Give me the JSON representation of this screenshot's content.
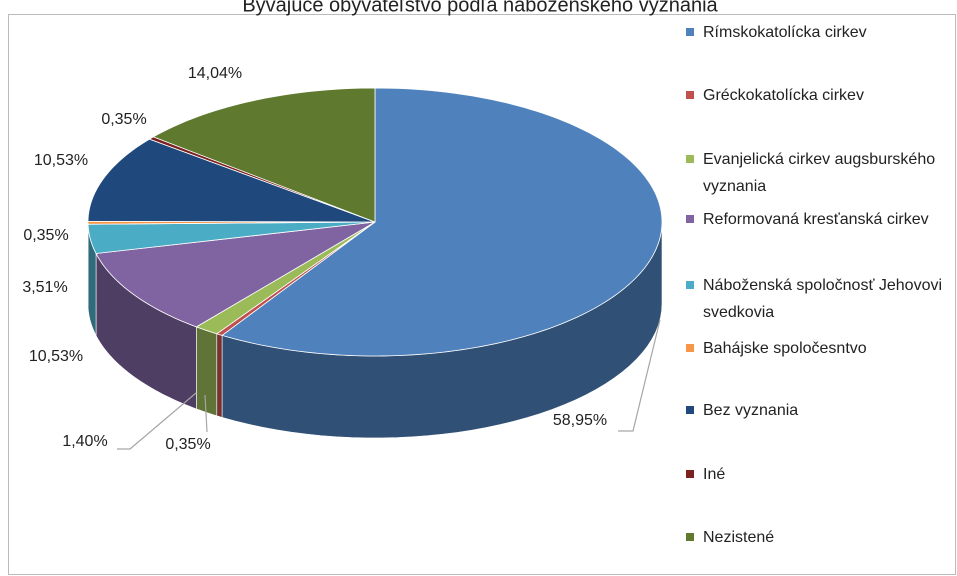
{
  "chart_data": {
    "type": "pie3d",
    "title": "Bývajúce obyvateľstvo podľa náboženského vyznania",
    "categories": [
      "Rímskokatolícka cirkev",
      "Gréckokatolícka cirkev",
      "Evanjelická cirkev augsburského vyznania",
      "Reformovaná kresťanská cirkev",
      "Náboženská spoločnosť Jehovovi svedkovia",
      "Bahájske spoločesntvo",
      "Bez vyznania",
      "Iné",
      "Nezistené"
    ],
    "values": [
      58.95,
      0.35,
      1.4,
      10.53,
      3.51,
      0.35,
      10.53,
      0.35,
      14.04
    ],
    "value_labels": [
      "58,95%",
      "0,35%",
      "1,40%",
      "10,53%",
      "3,51%",
      "0,35%",
      "10,53%",
      "0,35%",
      "14,04%"
    ],
    "colors": [
      "#4f81bd",
      "#c0504d",
      "#9bbb59",
      "#8064a2",
      "#4bacc6",
      "#f79646",
      "#1f497d",
      "#7b2220",
      "#5f7a2e"
    ],
    "legend": "right"
  }
}
